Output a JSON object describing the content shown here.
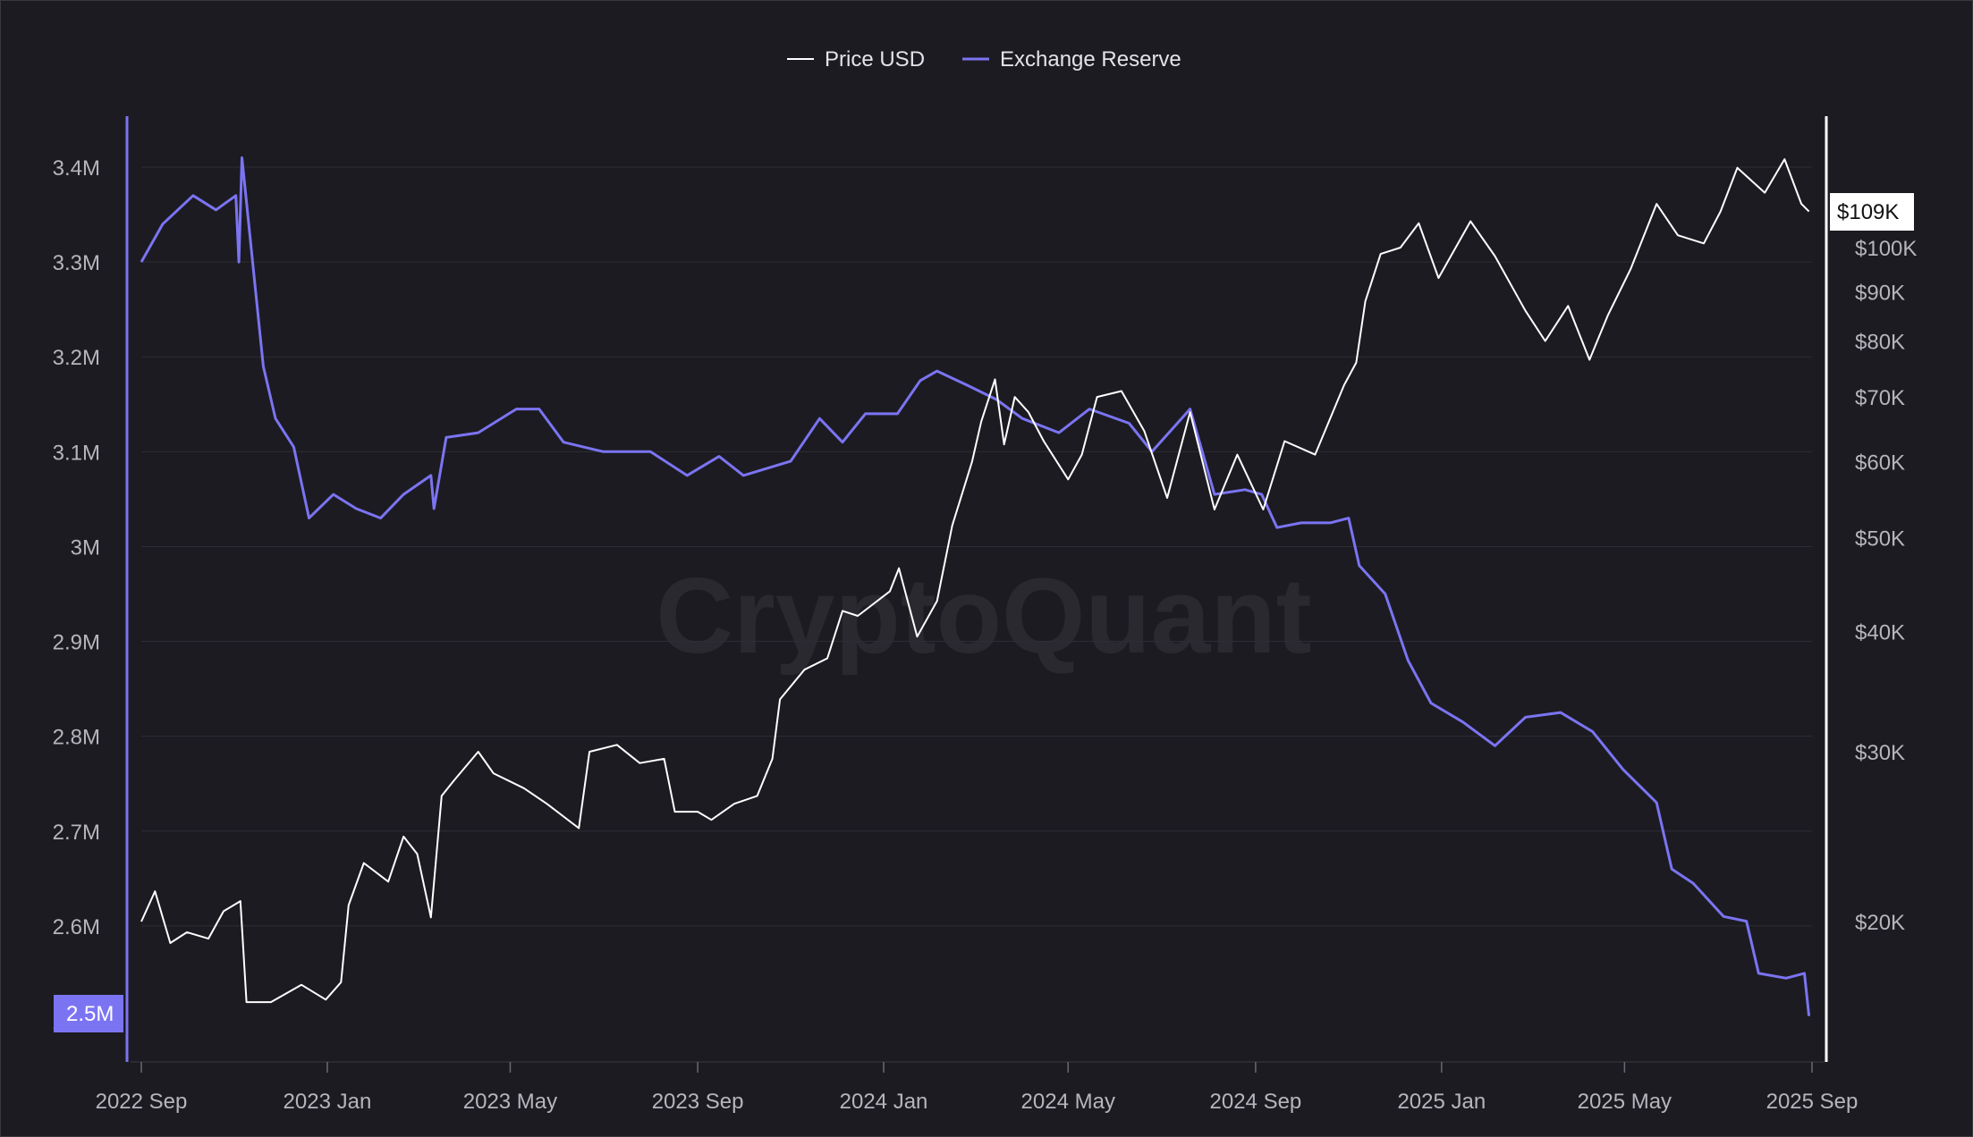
{
  "chart_data": {
    "type": "line",
    "title": "",
    "watermark": "CryptoQuant",
    "legend_position": "top-center",
    "grid": true,
    "colors": {
      "background": "#1c1b21",
      "price": "#ffffff",
      "reserve": "#7b74f2",
      "grid": "#2e2d35",
      "tick": "#b6b5bc"
    },
    "x_ticks": [
      "2022 Sep",
      "2023 Jan",
      "2023 May",
      "2023 Sep",
      "2024 Jan",
      "2024 May",
      "2024 Sep",
      "2025 Jan",
      "2025 May",
      "2025 Sep"
    ],
    "left_axis": {
      "ticks": [
        "2.5M",
        "2.6M",
        "2.7M",
        "2.8M",
        "2.9M",
        "3M",
        "3.1M",
        "3.2M",
        "3.3M",
        "3.4M"
      ],
      "values": [
        2500000,
        2600000,
        2700000,
        2800000,
        2900000,
        3000000,
        3100000,
        3200000,
        3300000,
        3400000
      ],
      "ylim": [
        2460000,
        3460000
      ],
      "current_label": "2.5M",
      "current_value": 2505000
    },
    "right_axis": {
      "scale": "log",
      "ticks": [
        "$20K",
        "$30K",
        "$40K",
        "$50K",
        "$60K",
        "$70K",
        "$80K",
        "$90K",
        "$100K"
      ],
      "values": [
        20000,
        30000,
        40000,
        50000,
        60000,
        70000,
        80000,
        90000,
        100000
      ],
      "current_label": "$109K",
      "current_value": 109000
    },
    "series": [
      {
        "name": "Price USD",
        "axis": "right",
        "points": [
          [
            "2022-09-01",
            20000
          ],
          [
            "2022-09-10",
            21500
          ],
          [
            "2022-09-20",
            19000
          ],
          [
            "2022-10-01",
            19500
          ],
          [
            "2022-10-15",
            19200
          ],
          [
            "2022-10-25",
            20500
          ],
          [
            "2022-11-05",
            21000
          ],
          [
            "2022-11-09",
            16500
          ],
          [
            "2022-11-25",
            16500
          ],
          [
            "2022-12-15",
            17200
          ],
          [
            "2022-12-31",
            16600
          ],
          [
            "2023-01-10",
            17300
          ],
          [
            "2023-01-15",
            20800
          ],
          [
            "2023-01-25",
            23000
          ],
          [
            "2023-02-10",
            22000
          ],
          [
            "2023-02-20",
            24500
          ],
          [
            "2023-03-01",
            23500
          ],
          [
            "2023-03-10",
            20200
          ],
          [
            "2023-03-17",
            27000
          ],
          [
            "2023-03-25",
            28000
          ],
          [
            "2023-04-10",
            30000
          ],
          [
            "2023-04-20",
            28500
          ],
          [
            "2023-05-10",
            27500
          ],
          [
            "2023-05-25",
            26500
          ],
          [
            "2023-06-15",
            25000
          ],
          [
            "2023-06-22",
            30000
          ],
          [
            "2023-07-10",
            30500
          ],
          [
            "2023-07-25",
            29200
          ],
          [
            "2023-08-10",
            29500
          ],
          [
            "2023-08-17",
            26000
          ],
          [
            "2023-09-01",
            26000
          ],
          [
            "2023-09-10",
            25500
          ],
          [
            "2023-09-25",
            26500
          ],
          [
            "2023-10-10",
            27000
          ],
          [
            "2023-10-20",
            29500
          ],
          [
            "2023-10-25",
            34000
          ],
          [
            "2023-11-10",
            36500
          ],
          [
            "2023-11-25",
            37500
          ],
          [
            "2023-12-05",
            42000
          ],
          [
            "2023-12-15",
            41500
          ],
          [
            "2024-01-05",
            44000
          ],
          [
            "2024-01-11",
            46500
          ],
          [
            "2024-01-23",
            39500
          ],
          [
            "2024-02-05",
            43000
          ],
          [
            "2024-02-15",
            51500
          ],
          [
            "2024-02-28",
            60000
          ],
          [
            "2024-03-05",
            66000
          ],
          [
            "2024-03-14",
            73000
          ],
          [
            "2024-03-20",
            62500
          ],
          [
            "2024-03-27",
            70000
          ],
          [
            "2024-04-05",
            67500
          ],
          [
            "2024-04-15",
            63000
          ],
          [
            "2024-05-01",
            57500
          ],
          [
            "2024-05-10",
            61000
          ],
          [
            "2024-05-20",
            70000
          ],
          [
            "2024-06-05",
            71000
          ],
          [
            "2024-06-20",
            64500
          ],
          [
            "2024-07-05",
            55000
          ],
          [
            "2024-07-20",
            67500
          ],
          [
            "2024-08-05",
            53500
          ],
          [
            "2024-08-20",
            61000
          ],
          [
            "2024-09-06",
            53500
          ],
          [
            "2024-09-20",
            63000
          ],
          [
            "2024-10-10",
            61000
          ],
          [
            "2024-10-29",
            72000
          ],
          [
            "2024-11-06",
            76000
          ],
          [
            "2024-11-12",
            88000
          ],
          [
            "2024-11-22",
            98500
          ],
          [
            "2024-12-05",
            100000
          ],
          [
            "2024-12-17",
            106000
          ],
          [
            "2024-12-30",
            93000
          ],
          [
            "2025-01-20",
            106500
          ],
          [
            "2025-02-05",
            98000
          ],
          [
            "2025-02-25",
            86000
          ],
          [
            "2025-03-10",
            80000
          ],
          [
            "2025-03-25",
            87000
          ],
          [
            "2025-04-08",
            76500
          ],
          [
            "2025-04-20",
            85000
          ],
          [
            "2025-05-05",
            95000
          ],
          [
            "2025-05-22",
            111000
          ],
          [
            "2025-06-05",
            103000
          ],
          [
            "2025-06-22",
            101000
          ],
          [
            "2025-07-03",
            109000
          ],
          [
            "2025-07-14",
            121000
          ],
          [
            "2025-08-01",
            114000
          ],
          [
            "2025-08-14",
            123500
          ],
          [
            "2025-08-25",
            111000
          ],
          [
            "2025-08-30",
            109000
          ]
        ]
      },
      {
        "name": "Exchange Reserve",
        "axis": "left",
        "points": [
          [
            "2022-09-01",
            3300000
          ],
          [
            "2022-09-15",
            3340000
          ],
          [
            "2022-10-05",
            3370000
          ],
          [
            "2022-10-20",
            3355000
          ],
          [
            "2022-11-02",
            3370000
          ],
          [
            "2022-11-04",
            3300000
          ],
          [
            "2022-11-06",
            3410000
          ],
          [
            "2022-11-20",
            3190000
          ],
          [
            "2022-11-28",
            3135000
          ],
          [
            "2022-12-10",
            3105000
          ],
          [
            "2022-12-20",
            3030000
          ],
          [
            "2023-01-05",
            3055000
          ],
          [
            "2023-01-20",
            3040000
          ],
          [
            "2023-02-05",
            3030000
          ],
          [
            "2023-02-20",
            3055000
          ],
          [
            "2023-03-10",
            3075000
          ],
          [
            "2023-03-12",
            3040000
          ],
          [
            "2023-03-20",
            3115000
          ],
          [
            "2023-04-10",
            3120000
          ],
          [
            "2023-05-05",
            3145000
          ],
          [
            "2023-05-20",
            3145000
          ],
          [
            "2023-06-05",
            3110000
          ],
          [
            "2023-07-01",
            3100000
          ],
          [
            "2023-08-01",
            3100000
          ],
          [
            "2023-08-25",
            3075000
          ],
          [
            "2023-09-15",
            3095000
          ],
          [
            "2023-10-01",
            3075000
          ],
          [
            "2023-11-01",
            3090000
          ],
          [
            "2023-11-20",
            3135000
          ],
          [
            "2023-12-05",
            3110000
          ],
          [
            "2023-12-20",
            3140000
          ],
          [
            "2024-01-10",
            3140000
          ],
          [
            "2024-01-25",
            3175000
          ],
          [
            "2024-02-05",
            3185000
          ],
          [
            "2024-02-25",
            3170000
          ],
          [
            "2024-03-15",
            3155000
          ],
          [
            "2024-04-01",
            3135000
          ],
          [
            "2024-04-25",
            3120000
          ],
          [
            "2024-05-15",
            3145000
          ],
          [
            "2024-06-10",
            3130000
          ],
          [
            "2024-06-25",
            3100000
          ],
          [
            "2024-07-20",
            3145000
          ],
          [
            "2024-08-05",
            3055000
          ],
          [
            "2024-08-25",
            3060000
          ],
          [
            "2024-09-05",
            3055000
          ],
          [
            "2024-09-15",
            3020000
          ],
          [
            "2024-10-01",
            3025000
          ],
          [
            "2024-10-20",
            3025000
          ],
          [
            "2024-11-01",
            3030000
          ],
          [
            "2024-11-08",
            2980000
          ],
          [
            "2024-11-25",
            2950000
          ],
          [
            "2024-12-10",
            2880000
          ],
          [
            "2024-12-25",
            2835000
          ],
          [
            "2025-01-15",
            2815000
          ],
          [
            "2025-02-05",
            2790000
          ],
          [
            "2025-02-25",
            2820000
          ],
          [
            "2025-03-20",
            2825000
          ],
          [
            "2025-04-10",
            2805000
          ],
          [
            "2025-04-30",
            2765000
          ],
          [
            "2025-05-22",
            2730000
          ],
          [
            "2025-06-01",
            2660000
          ],
          [
            "2025-06-15",
            2645000
          ],
          [
            "2025-07-05",
            2610000
          ],
          [
            "2025-07-20",
            2605000
          ],
          [
            "2025-07-28",
            2550000
          ],
          [
            "2025-08-15",
            2545000
          ],
          [
            "2025-08-27",
            2550000
          ],
          [
            "2025-08-30",
            2505000
          ]
        ]
      }
    ]
  }
}
